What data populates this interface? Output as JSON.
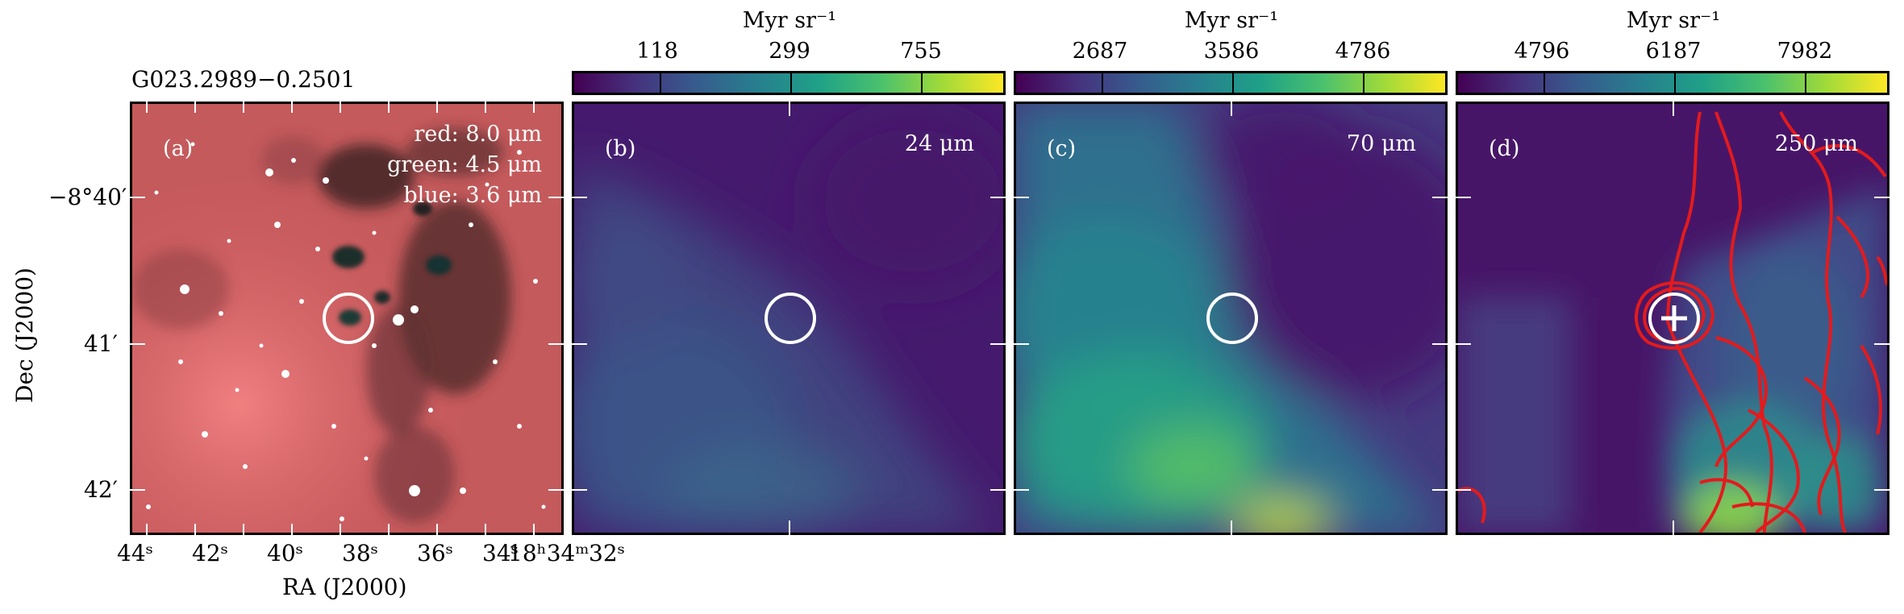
{
  "source_name": "G023.2989−0.2501",
  "panels": [
    {
      "id": "a",
      "label": "(a)",
      "legend": [
        "red: 8.0 μm",
        "green: 4.5 μm",
        "blue: 3.6 μm"
      ]
    },
    {
      "id": "b",
      "label": "(b)",
      "band": "24 μm",
      "colorbar": {
        "unit": "Myr sr⁻¹",
        "ticks": [
          "118",
          "299",
          "755"
        ]
      }
    },
    {
      "id": "c",
      "label": "(c)",
      "band": "70 μm",
      "colorbar": {
        "unit": "Myr sr⁻¹",
        "ticks": [
          "2687",
          "3586",
          "4786"
        ]
      }
    },
    {
      "id": "d",
      "label": "(d)",
      "band": "250 μm",
      "colorbar": {
        "unit": "Myr sr⁻¹",
        "ticks": [
          "4796",
          "6187",
          "7982"
        ]
      }
    }
  ],
  "axes": {
    "xlabel": "RA (J2000)",
    "ylabel": "Dec (J2000)",
    "xticks": [
      "44ˢ",
      "42ˢ",
      "40ˢ",
      "38ˢ",
      "36ˢ",
      "34ˢ",
      "18ʰ34ᵐ",
      "32ˢ"
    ],
    "yticks": [
      "−8°40′",
      "41′",
      "42′"
    ]
  },
  "colors": {
    "circle": "#ffffff",
    "contour": "#e41a1c",
    "frame": "#000000"
  },
  "colormap": "viridis"
}
